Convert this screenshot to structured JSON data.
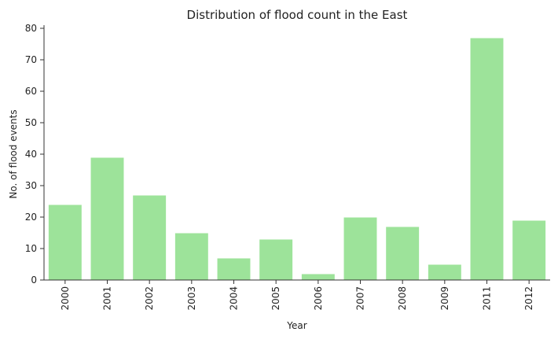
{
  "chart_data": {
    "type": "bar",
    "title": "Distribution of flood count in the East",
    "xlabel": "Year",
    "ylabel": "No. of flood events",
    "categories": [
      "2000",
      "2001",
      "2002",
      "2003",
      "2004",
      "2005",
      "2006",
      "2007",
      "2008",
      "2009",
      "2011",
      "2012"
    ],
    "values": [
      24,
      39,
      27,
      15,
      7,
      13,
      2,
      20,
      17,
      5,
      77,
      19
    ],
    "ylim": [
      0,
      81
    ],
    "yticks": [
      0,
      10,
      20,
      30,
      40,
      50,
      60,
      70,
      80
    ],
    "grid": false,
    "bar_color": "#9de39a",
    "bar_edge_color": "#ffffff"
  }
}
